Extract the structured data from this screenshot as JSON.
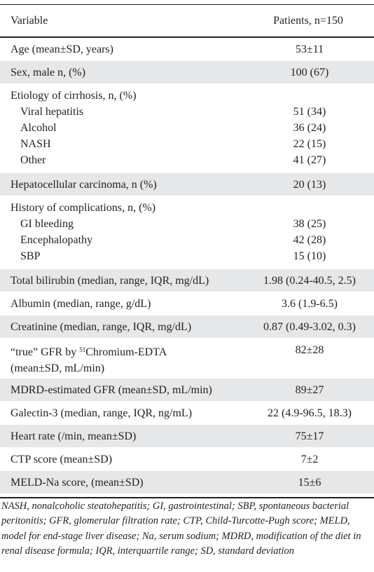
{
  "header": {
    "variable": "Variable",
    "patients": "Patients, n=150"
  },
  "rows": {
    "age": {
      "label": "Age (mean±SD, years)",
      "value": "53±11"
    },
    "sex": {
      "label": "Sex, male n, (%)",
      "value": "100 (67)"
    },
    "etiology": {
      "label": "Etiology of cirrhosis, n, (%)",
      "items": [
        {
          "label": "Viral hepatitis",
          "value": "51 (34)"
        },
        {
          "label": "Alcohol",
          "value": "36 (24)"
        },
        {
          "label": "NASH",
          "value": "22 (15)"
        },
        {
          "label": "Other",
          "value": "41 (27)"
        }
      ]
    },
    "hcc": {
      "label": "Hepatocellular carcinoma, n (%)",
      "value": "20 (13)"
    },
    "complications": {
      "label": "History of complications, n, (%)",
      "items": [
        {
          "label": "GI bleeding",
          "value": "38 (25)"
        },
        {
          "label": "Encephalopathy",
          "value": "42 (28)"
        },
        {
          "label": "SBP",
          "value": "15 (10)"
        }
      ]
    },
    "bilirubin": {
      "label": "Total bilirubin (median, range, IQR, mg/dL)",
      "value": "1.98 (0.24-40.5, 2.5)"
    },
    "albumin": {
      "label": "Albumin (median, range, g/dL)",
      "value": "3.6 (1.9-6.5)"
    },
    "creatinine": {
      "label": "Creatinine (median, range, IQR, mg/dL)",
      "value": "0.87 (0.49-3.02, 0.3)"
    },
    "gfr_true": {
      "label_pre": "“true” GFR by ",
      "label_sup": "51",
      "label_post": "Chromium-EDTA",
      "label_line2": "(mean±SD, mL/min)",
      "value": "82±28"
    },
    "mdrd": {
      "label": "MDRD-estimated GFR (mean±SD, mL/min)",
      "value": "89±27"
    },
    "galectin": {
      "label": "Galectin-3 (median, range, IQR, ng/mL)",
      "value": "22 (4.9-96.5, 18.3)"
    },
    "heart_rate": {
      "label": "Heart rate (/min, mean±SD)",
      "value": "75±17"
    },
    "ctp": {
      "label": "CTP score (mean±SD)",
      "value": "7±2"
    },
    "meld": {
      "label": "MELD-Na score, (mean±SD)",
      "value": "15±6"
    }
  },
  "footnote": "NASH, nonalcoholic steatohepatitis; GI, gastrointestinal; SBP, spontaneous bacterial peritonitis; GFR, glomerular filtration rate; CTP, Child-Turcotte-Pugh score; MELD, model for end-stage liver disease; Na, serum sodium; MDRD, modification of the diet in renal disease formula; IQR, interquartile range; SD, standard deviation"
}
